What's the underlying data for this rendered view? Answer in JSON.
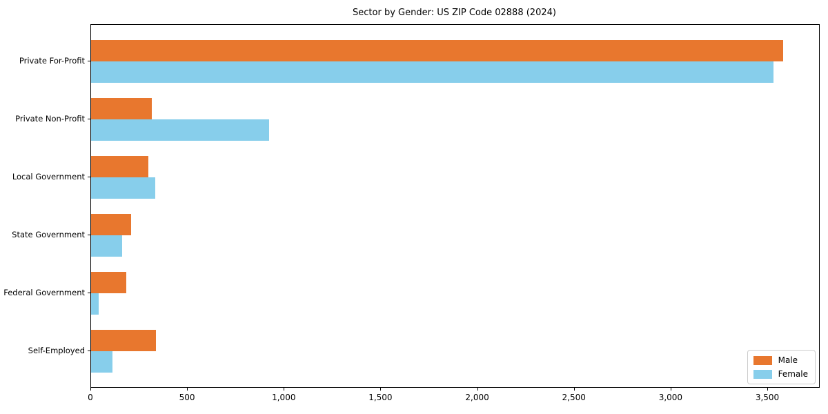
{
  "title": "Sector by Gender: US ZIP Code 02888 (2024)",
  "colors": {
    "male": "#E8772E",
    "female": "#87CEEB",
    "axis": "#000000",
    "legend_border": "#cccccc",
    "background": "#ffffff"
  },
  "legend": {
    "position": "lower right",
    "items": [
      {
        "label": "Male",
        "color_key": "male"
      },
      {
        "label": "Female",
        "color_key": "female"
      }
    ]
  },
  "chart_data": {
    "type": "bar",
    "orientation": "horizontal",
    "title": "Sector by Gender: US ZIP Code 02888 (2024)",
    "xlabel": "",
    "ylabel": "",
    "grid": false,
    "legend_position": "lower right",
    "categories": [
      "Private For-Profit",
      "Private Non-Profit",
      "Local Government",
      "State Government",
      "Federal Government",
      "Self-Employed"
    ],
    "series": [
      {
        "name": "Male",
        "values": [
          3580,
          315,
          295,
          205,
          180,
          335
        ]
      },
      {
        "name": "Female",
        "values": [
          3530,
          920,
          330,
          160,
          40,
          110
        ]
      }
    ],
    "xlim": [
      0,
      3764
    ],
    "xticks": [
      0,
      500,
      1000,
      1500,
      2000,
      2500,
      3000,
      3500
    ],
    "xtick_labels": [
      "0",
      "500",
      "1,000",
      "1,500",
      "2,000",
      "2,500",
      "3,000",
      "3,500"
    ]
  }
}
